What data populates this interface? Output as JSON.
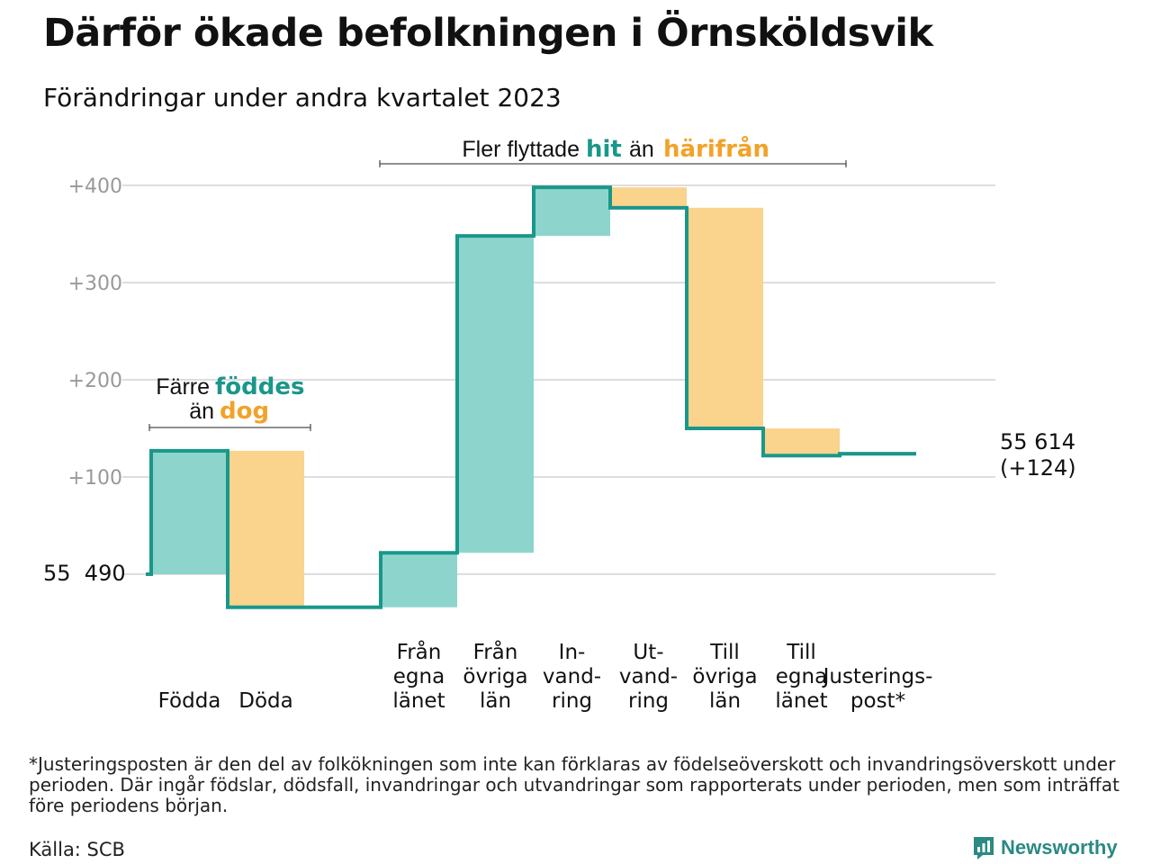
{
  "title": "Därför ökade befolkningen i Örnsköldsvik",
  "subtitle": "Förändringar under andra kvartalet 2023",
  "colors": {
    "increase_fill": "#8dd5cc",
    "decrease_fill": "#fad38c",
    "line": "#1a978a",
    "hit_text": "#1a978a",
    "harifran_text": "#f2a229",
    "grid": "#dddddd",
    "tick_text": "#999999"
  },
  "annotations": {
    "top_prefix": "Fler flyttade",
    "top_hit": "hit",
    "top_mid": "än",
    "top_harifran": "härifrån",
    "left_prefix": "Färre",
    "left_foddes": "föddes",
    "left_mid": "än",
    "left_dog": "dog"
  },
  "start_label": "55  490",
  "end_label_1": "55 614",
  "end_label_2": "(+124)",
  "footnote": "*Justeringsposten är den del av folkökningen som inte kan förklaras av födelseöverskott och invandringsöverskott under perioden. Där ingår födslar, dödsfall, invandringar och utvandringar som rapporterats under perioden, men som inträffat före periodens början.",
  "source": "Källa: SCB",
  "brand": "Newsworthy",
  "chart_data": {
    "type": "bar",
    "title": "Därför ökade befolkningen i Örnsköldsvik",
    "subtitle": "Förändringar under andra kvartalet 2023",
    "start_value": 55490,
    "end_value": 55614,
    "net_change": 124,
    "y_ticks": [
      "+100",
      "+200",
      "+300",
      "+400"
    ],
    "ylim": [
      -35,
      405
    ],
    "grid": true,
    "categories": [
      {
        "label": [
          "Födda"
        ],
        "start": 0,
        "end": 127
      },
      {
        "label": [
          "Döda"
        ],
        "start": 127,
        "end": -34
      },
      {
        "label": [],
        "start": -34,
        "end": -34
      },
      {
        "label": [
          "Från",
          "egna",
          "länet"
        ],
        "start": -34,
        "end": 22
      },
      {
        "label": [
          "Från",
          "övriga",
          "län"
        ],
        "start": 22,
        "end": 348
      },
      {
        "label": [
          "In-",
          "vand-",
          "ring"
        ],
        "start": 348,
        "end": 398
      },
      {
        "label": [
          "Ut-",
          "vand-",
          "ring"
        ],
        "start": 398,
        "end": 377
      },
      {
        "label": [
          "Till",
          "övriga",
          "län"
        ],
        "start": 377,
        "end": 150
      },
      {
        "label": [
          "Till",
          "egna",
          "länet"
        ],
        "start": 150,
        "end": 122
      },
      {
        "label": [
          "Justerings-",
          "post*"
        ],
        "start": 122,
        "end": 124
      }
    ]
  }
}
